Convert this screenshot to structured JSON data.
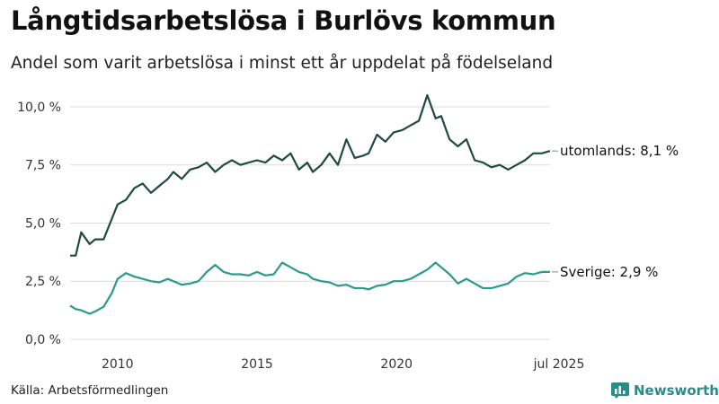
{
  "title": "Långtidsarbetslösa i Burlövs kommun",
  "subtitle": "Andel som varit arbetslösa i minst ett år uppdelat på födelseland",
  "source": "Källa: Arbetsförmedlingen",
  "brand": "Newsworthy",
  "colors": {
    "utomlands": "#1f4a3f",
    "sverige": "#2a9a8c",
    "grid": "#dcdcdc",
    "brand": "#2a8c88"
  },
  "icons": {
    "brand_logo": "bar-chart-icon"
  },
  "chart_data": {
    "type": "line",
    "title": "Långtidsarbetslösa i Burlövs kommun",
    "ylabel": "",
    "xlabel": "",
    "ylim": [
      0,
      10.5
    ],
    "xlim": [
      2008.3,
      2025.5
    ],
    "grid": true,
    "y_ticks": [
      {
        "value": 0,
        "label": "0,0 %"
      },
      {
        "value": 2.5,
        "label": "2,5 %"
      },
      {
        "value": 5,
        "label": "5,0 %"
      },
      {
        "value": 7.5,
        "label": "7,5 %"
      },
      {
        "value": 10,
        "label": "10,0 %"
      }
    ],
    "x_ticks": [
      {
        "value": 2010,
        "label": "2010"
      },
      {
        "value": 2015,
        "label": "2015"
      },
      {
        "value": 2020,
        "label": "2020"
      },
      {
        "value": 2025.5,
        "label": "jul 2025"
      }
    ],
    "series": [
      {
        "name": "utomlands",
        "end_label": "utomlands: 8,1 %",
        "x": [
          2008.3,
          2008.5,
          2008.7,
          2009.0,
          2009.2,
          2009.5,
          2009.8,
          2010.0,
          2010.3,
          2010.6,
          2010.9,
          2011.2,
          2011.5,
          2011.8,
          2012.0,
          2012.3,
          2012.6,
          2012.9,
          2013.2,
          2013.5,
          2013.8,
          2014.1,
          2014.4,
          2014.7,
          2015.0,
          2015.3,
          2015.6,
          2015.9,
          2016.2,
          2016.5,
          2016.8,
          2017.0,
          2017.3,
          2017.6,
          2017.9,
          2018.2,
          2018.5,
          2018.8,
          2019.0,
          2019.3,
          2019.6,
          2019.9,
          2020.2,
          2020.5,
          2020.8,
          2021.1,
          2021.4,
          2021.6,
          2021.9,
          2022.2,
          2022.5,
          2022.8,
          2023.1,
          2023.4,
          2023.7,
          2024.0,
          2024.3,
          2024.6,
          2024.9,
          2025.2,
          2025.5
        ],
        "values": [
          3.6,
          3.6,
          4.6,
          4.1,
          4.3,
          4.3,
          5.2,
          5.8,
          6.0,
          6.5,
          6.7,
          6.3,
          6.6,
          6.9,
          7.2,
          6.9,
          7.3,
          7.4,
          7.6,
          7.2,
          7.5,
          7.7,
          7.5,
          7.6,
          7.7,
          7.6,
          7.9,
          7.7,
          8.0,
          7.3,
          7.6,
          7.2,
          7.5,
          8.0,
          7.5,
          8.6,
          7.8,
          7.9,
          8.0,
          8.8,
          8.5,
          8.9,
          9.0,
          9.2,
          9.4,
          10.5,
          9.5,
          9.6,
          8.6,
          8.3,
          8.6,
          7.7,
          7.6,
          7.4,
          7.5,
          7.3,
          7.5,
          7.7,
          8.0,
          8.0,
          8.1
        ]
      },
      {
        "name": "Sverige",
        "end_label": "Sverige: 2,9 %",
        "x": [
          2008.3,
          2008.5,
          2008.7,
          2009.0,
          2009.2,
          2009.5,
          2009.8,
          2010.0,
          2010.3,
          2010.6,
          2010.9,
          2011.2,
          2011.5,
          2011.8,
          2012.0,
          2012.3,
          2012.6,
          2012.9,
          2013.2,
          2013.5,
          2013.8,
          2014.1,
          2014.4,
          2014.7,
          2015.0,
          2015.3,
          2015.6,
          2015.9,
          2016.2,
          2016.5,
          2016.8,
          2017.0,
          2017.3,
          2017.6,
          2017.9,
          2018.2,
          2018.5,
          2018.8,
          2019.0,
          2019.3,
          2019.6,
          2019.9,
          2020.2,
          2020.5,
          2020.8,
          2021.1,
          2021.4,
          2021.6,
          2021.9,
          2022.2,
          2022.5,
          2022.8,
          2023.1,
          2023.4,
          2023.7,
          2024.0,
          2024.3,
          2024.6,
          2024.9,
          2025.2,
          2025.5
        ],
        "values": [
          1.45,
          1.3,
          1.25,
          1.1,
          1.2,
          1.4,
          2.0,
          2.6,
          2.85,
          2.7,
          2.6,
          2.5,
          2.45,
          2.6,
          2.5,
          2.35,
          2.4,
          2.5,
          2.9,
          3.2,
          2.9,
          2.8,
          2.8,
          2.75,
          2.9,
          2.75,
          2.8,
          3.3,
          3.1,
          2.9,
          2.8,
          2.6,
          2.5,
          2.45,
          2.3,
          2.35,
          2.2,
          2.2,
          2.15,
          2.3,
          2.35,
          2.5,
          2.5,
          2.6,
          2.8,
          3.0,
          3.3,
          3.1,
          2.8,
          2.4,
          2.6,
          2.4,
          2.2,
          2.2,
          2.3,
          2.4,
          2.7,
          2.85,
          2.8,
          2.9,
          2.9
        ]
      }
    ]
  }
}
